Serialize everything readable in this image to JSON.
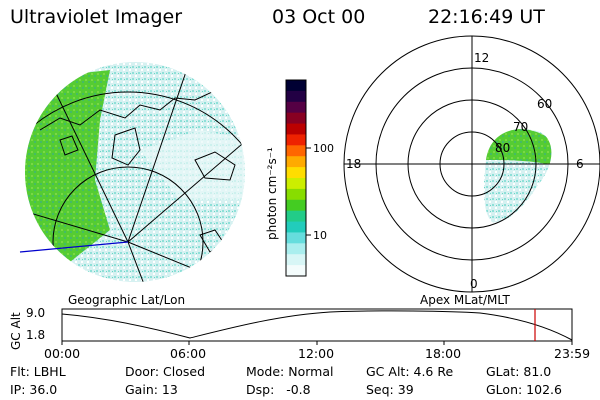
{
  "header": {
    "title": "Ultraviolet Imager",
    "date": "03 Oct 00",
    "time": "22:16:49 UT"
  },
  "colorbar": {
    "label": "photon cm⁻²s⁻¹",
    "ticks": [
      "100",
      "10"
    ],
    "colors": [
      "#000033",
      "#220044",
      "#550044",
      "#880022",
      "#bb0000",
      "#ee2200",
      "#ff6600",
      "#ffaa00",
      "#ffdd00",
      "#ccee00",
      "#88dd00",
      "#44cc22",
      "#22cc88",
      "#22ccbb",
      "#66dddd",
      "#aaeeee",
      "#d8f6f6",
      "#f4fcfc"
    ]
  },
  "left_map": {
    "caption": "Geographic Lat/Lon",
    "colors": {
      "aurora_green": "#55cc33",
      "aurora_cyan": "#66ddcc",
      "aurora_light": "#c8eeee",
      "meridian": "#0000cc"
    }
  },
  "polar": {
    "caption": "Apex MLat/MLT",
    "hour_labels": {
      "top": "12",
      "left": "18",
      "right": "6",
      "bottom": "0"
    },
    "lat_labels": [
      "80",
      "70",
      "60"
    ]
  },
  "altitude_plot": {
    "axis_label": "GC Alt",
    "y_ticks": [
      "9.0",
      "1.8"
    ],
    "x_ticks": [
      "00:00",
      "06:00",
      "12:00",
      "18:00",
      "23:59"
    ],
    "marker_color": "#cc0000"
  },
  "info": {
    "row1": {
      "flt": "Flt: LBHL",
      "door": "Door: Closed",
      "mode": "Mode: Normal",
      "gcalt": "GC Alt: 4.6 Re",
      "glat": "GLat: 81.0"
    },
    "row2": {
      "ip": "IP: 36.0",
      "gain": "Gain: 13",
      "dsp": "Dsp:   -0.8",
      "seq": "Seq: 39",
      "glon": "GLon: 102.6"
    }
  }
}
